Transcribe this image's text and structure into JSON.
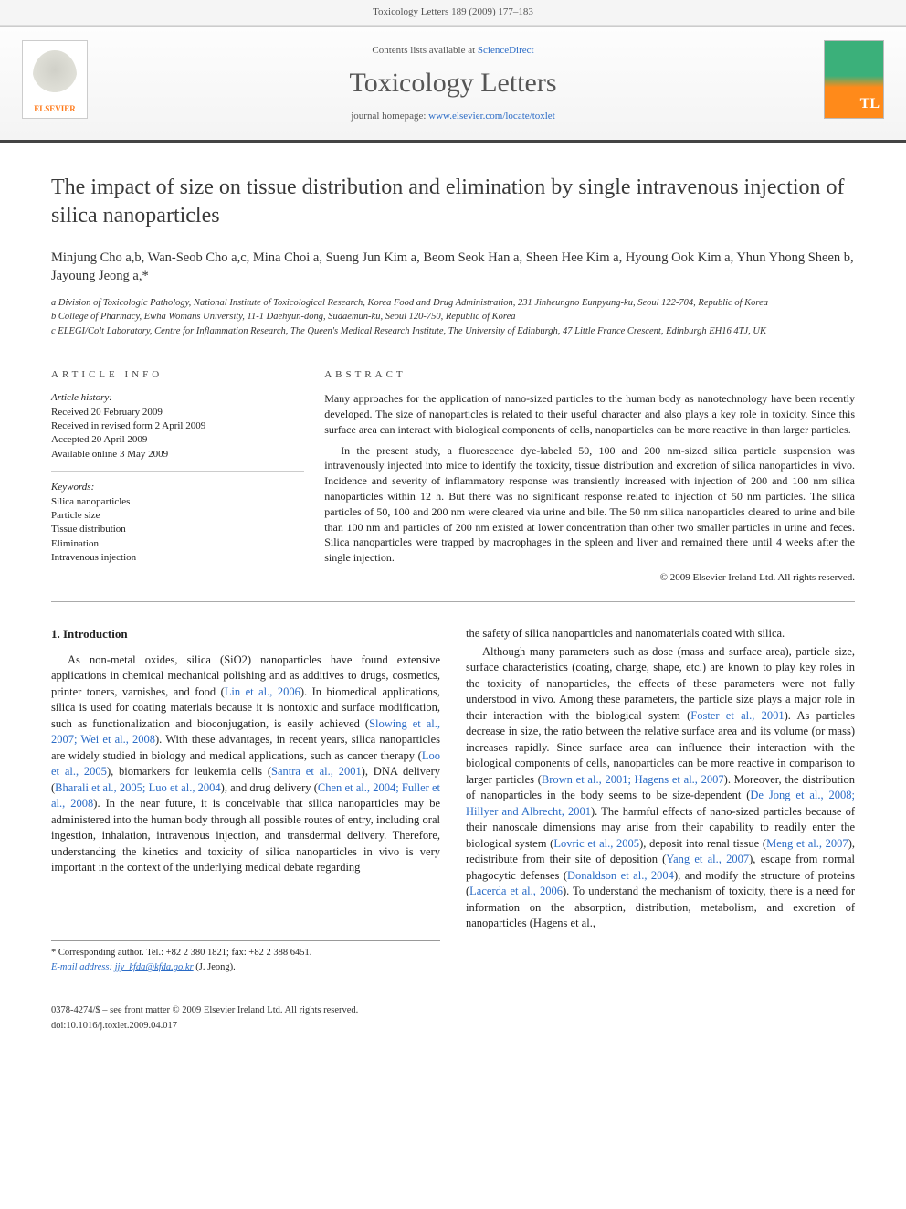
{
  "header": {
    "citation": "Toxicology Letters 189 (2009) 177–183"
  },
  "banner": {
    "contents_prefix": "Contents lists available at ",
    "contents_link": "ScienceDirect",
    "journal": "Toxicology Letters",
    "homepage_prefix": "journal homepage: ",
    "homepage_url": "www.elsevier.com/locate/toxlet",
    "publisher_logo_text": "ELSEVIER",
    "cover_badge": "TL"
  },
  "article": {
    "title": "The impact of size on tissue distribution and elimination by single intravenous injection of silica nanoparticles",
    "authors": "Minjung Cho a,b, Wan-Seob Cho a,c, Mina Choi a, Sueng Jun Kim a, Beom Seok Han a, Sheen Hee Kim a, Hyoung Ook Kim a, Yhun Yhong Sheen b, Jayoung Jeong a,*",
    "affiliations": [
      "a Division of Toxicologic Pathology, National Institute of Toxicological Research, Korea Food and Drug Administration, 231 Jinheungno Eunpyung-ku, Seoul 122-704, Republic of Korea",
      "b College of Pharmacy, Ewha Womans University, 11-1 Daehyun-dong, Sudaemun-ku, Seoul 120-750, Republic of Korea",
      "c ELEGI/Colt Laboratory, Centre for Inflammation Research, The Queen's Medical Research Institute, The University of Edinburgh, 47 Little France Crescent, Edinburgh EH16 4TJ, UK"
    ]
  },
  "info": {
    "section_label": "ARTICLE INFO",
    "history_label": "Article history:",
    "history": [
      "Received 20 February 2009",
      "Received in revised form 2 April 2009",
      "Accepted 20 April 2009",
      "Available online 3 May 2009"
    ],
    "keywords_label": "Keywords:",
    "keywords": [
      "Silica nanoparticles",
      "Particle size",
      "Tissue distribution",
      "Elimination",
      "Intravenous injection"
    ]
  },
  "abstract": {
    "section_label": "ABSTRACT",
    "para1": "Many approaches for the application of nano-sized particles to the human body as nanotechnology have been recently developed. The size of nanoparticles is related to their useful character and also plays a key role in toxicity. Since this surface area can interact with biological components of cells, nanoparticles can be more reactive in than larger particles.",
    "para2": "In the present study, a fluorescence dye-labeled 50, 100 and 200 nm-sized silica particle suspension was intravenously injected into mice to identify the toxicity, tissue distribution and excretion of silica nanoparticles in vivo. Incidence and severity of inflammatory response was transiently increased with injection of 200 and 100 nm silica nanoparticles within 12 h. But there was no significant response related to injection of 50 nm particles. The silica particles of 50, 100 and 200 nm were cleared via urine and bile. The 50 nm silica nanoparticles cleared to urine and bile than 100 nm and particles of 200 nm existed at lower concentration than other two smaller particles in urine and feces. Silica nanoparticles were trapped by macrophages in the spleen and liver and remained there until 4 weeks after the single injection.",
    "copyright": "© 2009 Elsevier Ireland Ltd. All rights reserved."
  },
  "content": {
    "intro_heading": "1. Introduction",
    "col1_p1": "As non-metal oxides, silica (SiO2) nanoparticles have found extensive applications in chemical mechanical polishing and as additives to drugs, cosmetics, printer toners, varnishes, and food (Lin et al., 2006). In biomedical applications, silica is used for coating materials because it is nontoxic and surface modification, such as functionalization and bioconjugation, is easily achieved (Slowing et al., 2007; Wei et al., 2008). With these advantages, in recent years, silica nanoparticles are widely studied in biology and medical applications, such as cancer therapy (Loo et al., 2005), biomarkers for leukemia cells (Santra et al., 2001), DNA delivery (Bharali et al., 2005; Luo et al., 2004), and drug delivery (Chen et al., 2004; Fuller et al., 2008). In the near future, it is conceivable that silica nanoparticles may be administered into the human body through all possible routes of entry, including oral ingestion, inhalation, intravenous injection, and transdermal delivery. Therefore, understanding the kinetics and toxicity of silica nanoparticles in vivo is very important in the context of the underlying medical debate regarding",
    "col2_p1": "the safety of silica nanoparticles and nanomaterials coated with silica.",
    "col2_p2": "Although many parameters such as dose (mass and surface area), particle size, surface characteristics (coating, charge, shape, etc.) are known to play key roles in the toxicity of nanoparticles, the effects of these parameters were not fully understood in vivo. Among these parameters, the particle size plays a major role in their interaction with the biological system (Foster et al., 2001). As particles decrease in size, the ratio between the relative surface area and its volume (or mass) increases rapidly. Since surface area can influence their interaction with the biological components of cells, nanoparticles can be more reactive in comparison to larger particles (Brown et al., 2001; Hagens et al., 2007). Moreover, the distribution of nanoparticles in the body seems to be size-dependent (De Jong et al., 2008; Hillyer and Albrecht, 2001). The harmful effects of nano-sized particles because of their nanoscale dimensions may arise from their capability to readily enter the biological system (Lovric et al., 2005), deposit into renal tissue (Meng et al., 2007), redistribute from their site of deposition (Yang et al., 2007), escape from normal phagocytic defenses (Donaldson et al., 2004), and modify the structure of proteins (Lacerda et al., 2006). To understand the mechanism of toxicity, there is a need for information on the absorption, distribution, metabolism, and excretion of nanoparticles (Hagens et al.,"
  },
  "footnote": {
    "corresponding": "* Corresponding author. Tel.: +82 2 380 1821; fax: +82 2 388 6451.",
    "email_label": "E-mail address:",
    "email": "jjy_kfda@kfda.go.kr",
    "email_suffix": "(J. Jeong)."
  },
  "footer": {
    "issn_line": "0378-4274/$ – see front matter © 2009 Elsevier Ireland Ltd. All rights reserved.",
    "doi_line": "doi:10.1016/j.toxlet.2009.04.017"
  },
  "colors": {
    "link": "#2a6bc6",
    "publisher_orange": "#ff7a1a",
    "cover_green": "#3bb07a",
    "cover_orange": "#ff8a1a",
    "rule_dark": "#444444",
    "text": "#222222"
  }
}
